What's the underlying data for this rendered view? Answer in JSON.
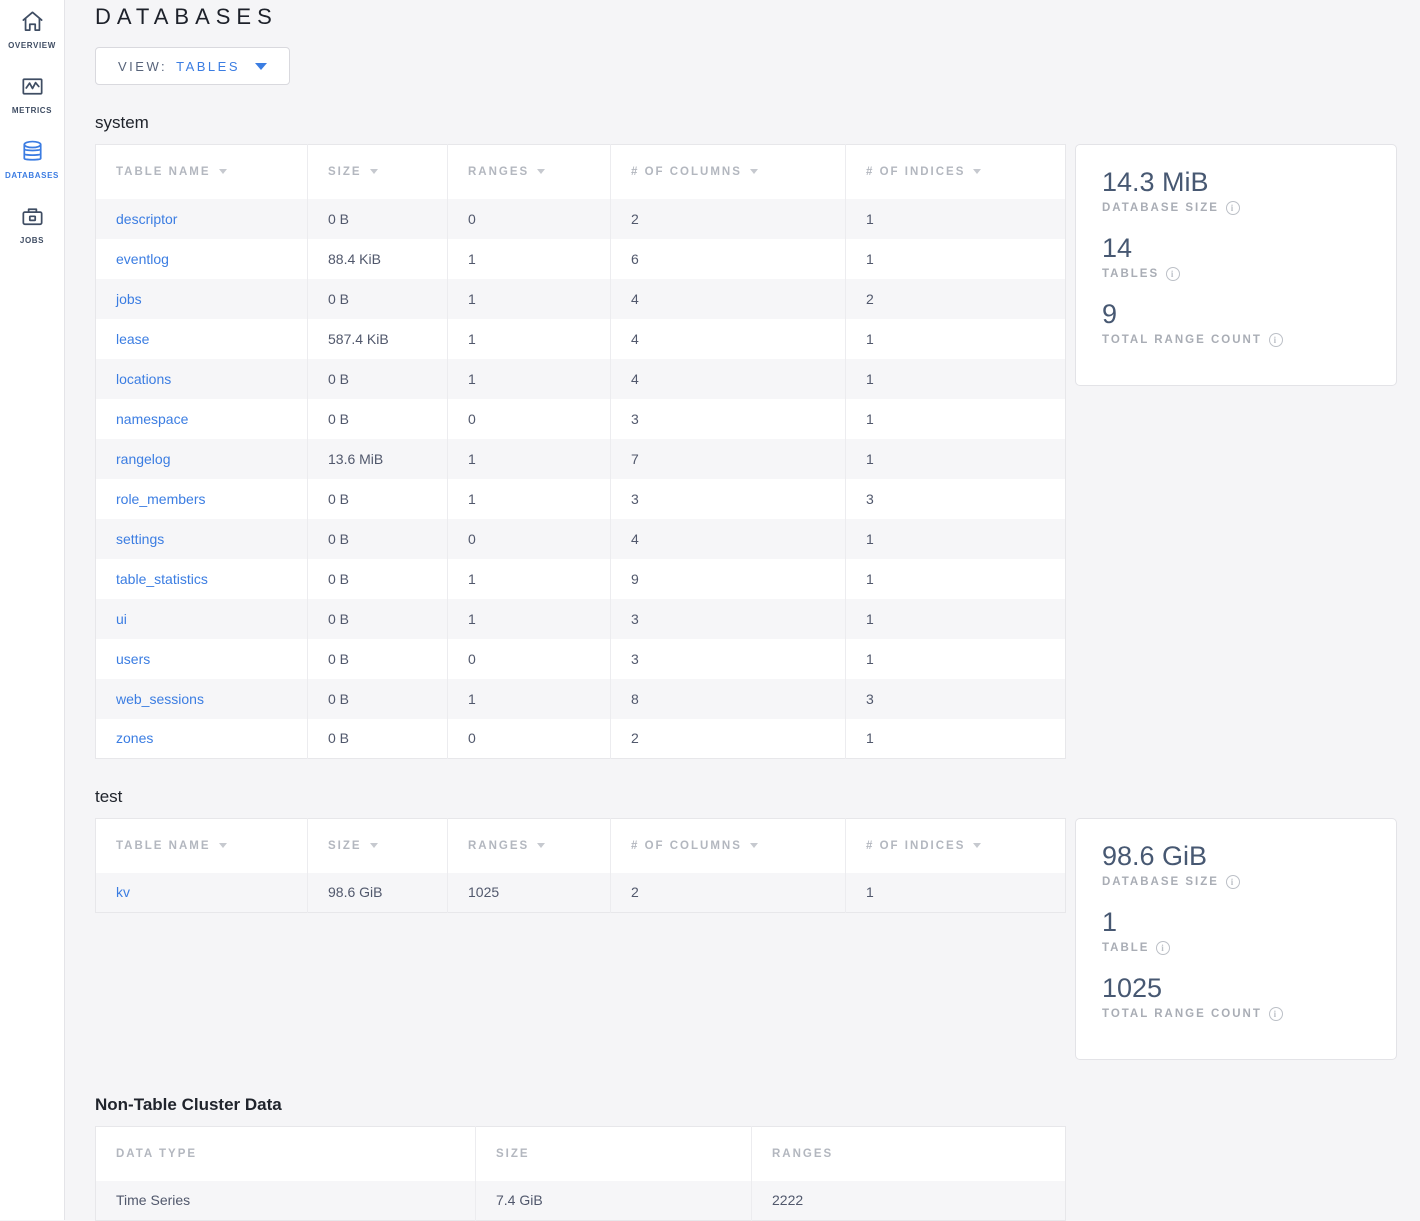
{
  "page": {
    "title": "DATABASES"
  },
  "view_selector": {
    "label": "VIEW:",
    "value": "TABLES"
  },
  "sidebar": {
    "items": [
      {
        "label": "OVERVIEW",
        "icon": "home-icon"
      },
      {
        "label": "METRICS",
        "icon": "metrics-icon"
      },
      {
        "label": "DATABASES",
        "icon": "database-icon"
      },
      {
        "label": "JOBS",
        "icon": "briefcase-icon"
      }
    ]
  },
  "databases": [
    {
      "name": "system",
      "table": {
        "columns": [
          "TABLE NAME",
          "SIZE",
          "RANGES",
          "# OF COLUMNS",
          "# OF INDICES"
        ],
        "sortable": true,
        "link_first_col": true,
        "rows": [
          [
            "descriptor",
            "0 B",
            "0",
            "2",
            "1"
          ],
          [
            "eventlog",
            "88.4 KiB",
            "1",
            "6",
            "1"
          ],
          [
            "jobs",
            "0 B",
            "1",
            "4",
            "2"
          ],
          [
            "lease",
            "587.4 KiB",
            "1",
            "4",
            "1"
          ],
          [
            "locations",
            "0 B",
            "1",
            "4",
            "1"
          ],
          [
            "namespace",
            "0 B",
            "0",
            "3",
            "1"
          ],
          [
            "rangelog",
            "13.6 MiB",
            "1",
            "7",
            "1"
          ],
          [
            "role_members",
            "0 B",
            "1",
            "3",
            "3"
          ],
          [
            "settings",
            "0 B",
            "0",
            "4",
            "1"
          ],
          [
            "table_statistics",
            "0 B",
            "1",
            "9",
            "1"
          ],
          [
            "ui",
            "0 B",
            "1",
            "3",
            "1"
          ],
          [
            "users",
            "0 B",
            "0",
            "3",
            "1"
          ],
          [
            "web_sessions",
            "0 B",
            "1",
            "8",
            "3"
          ],
          [
            "zones",
            "0 B",
            "0",
            "2",
            "1"
          ]
        ]
      },
      "summary": [
        {
          "value": "14.3 MiB",
          "label": "DATABASE SIZE"
        },
        {
          "value": "14",
          "label": "TABLES"
        },
        {
          "value": "9",
          "label": "TOTAL RANGE COUNT"
        }
      ]
    },
    {
      "name": "test",
      "table": {
        "columns": [
          "TABLE NAME",
          "SIZE",
          "RANGES",
          "# OF COLUMNS",
          "# OF INDICES"
        ],
        "sortable": true,
        "link_first_col": true,
        "rows": [
          [
            "kv",
            "98.6 GiB",
            "1025",
            "2",
            "1"
          ]
        ]
      },
      "summary": [
        {
          "value": "98.6 GiB",
          "label": "DATABASE SIZE"
        },
        {
          "value": "1",
          "label": "TABLE"
        },
        {
          "value": "1025",
          "label": "TOTAL RANGE COUNT"
        }
      ]
    }
  ],
  "non_table_section": {
    "title": "Non-Table Cluster Data",
    "table": {
      "columns": [
        "DATA TYPE",
        "SIZE",
        "RANGES"
      ],
      "sortable": false,
      "link_first_col": false,
      "rows": [
        [
          "Time Series",
          "7.4 GiB",
          "2222"
        ]
      ]
    }
  },
  "colors": {
    "accent_blue": "#3b7de2",
    "sidebar_icon": "#3f4d63",
    "cell_text": "#51586c",
    "header_gray": "#b3b7bf",
    "stat_value": "#475872"
  }
}
